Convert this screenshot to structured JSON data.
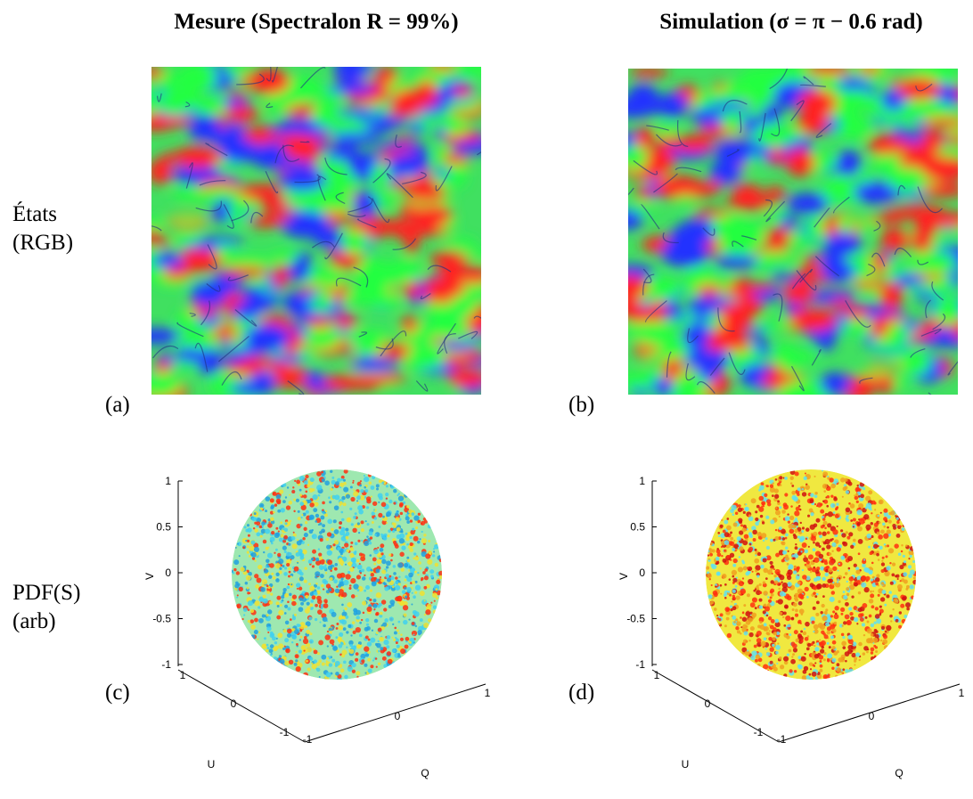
{
  "columns": [
    {
      "title": "Mesure (Spectralon R = 99%)"
    },
    {
      "title": "Simulation (σ = π − 0.6 rad)"
    }
  ],
  "rows": [
    {
      "label_lines": [
        "États",
        "(RGB)"
      ]
    },
    {
      "label_lines": [
        "PDF(S)",
        "(arb)"
      ]
    }
  ],
  "panels": [
    {
      "label": "(a)"
    },
    {
      "label": "(b)"
    },
    {
      "label": "(c)",
      "axes": {
        "v_label": "V",
        "u_label": "U",
        "q_label": "Q",
        "v_ticks": [
          1,
          0.5,
          0,
          -0.5,
          -1
        ],
        "u_ticks": [
          1,
          0,
          -1
        ],
        "q_ticks": [
          -1,
          0,
          1
        ]
      }
    },
    {
      "label": "(d)",
      "axes": {
        "v_label": "V",
        "u_label": "U",
        "q_label": "Q",
        "v_ticks": [
          1,
          0.5,
          0,
          -0.5,
          -1
        ],
        "u_ticks": [
          1,
          0,
          -1
        ],
        "q_ticks": [
          -1,
          0,
          1
        ]
      }
    }
  ]
}
